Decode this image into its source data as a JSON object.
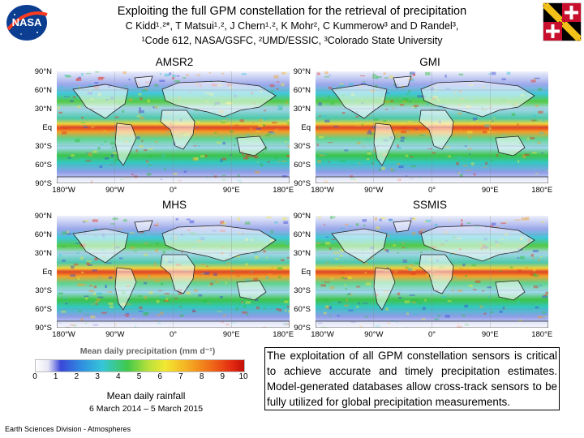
{
  "header": {
    "title": "Exploiting the full GPM constellation for the retrieval of precipitation",
    "authors": "C Kidd¹˒²*, T Matsui¹˒², J Chern¹˒², K Mohr², C Kummerow³ and D Randel³,",
    "affiliations": "¹Code 612, NASA/GSFC, ²UMD/ESSIC, ³Colorado State University"
  },
  "logos": {
    "nasa": "NASA"
  },
  "maps": [
    {
      "label": "AMSR2"
    },
    {
      "label": "GMI"
    },
    {
      "label": "MHS"
    },
    {
      "label": "SSMIS"
    }
  ],
  "axes": {
    "lat_labels": [
      "90°N",
      "60°N",
      "30°N",
      "Eq",
      "30°S",
      "60°S",
      "90°S"
    ],
    "lon_labels": [
      "180°W",
      "90°W",
      "0°",
      "90°E",
      "180°E"
    ]
  },
  "colorbar": {
    "title": "Mean daily precipitation (mm d⁻¹)",
    "ticks": [
      "0",
      "1",
      "2",
      "3",
      "4",
      "5",
      "6",
      "7",
      "8",
      "9",
      "10"
    ]
  },
  "caption": {
    "line1": "Mean daily rainfall",
    "line2": "6 March 2014 – 5 March 2015"
  },
  "footer": "Earth Sciences Division - Atmospheres",
  "body_text": "The exploitation of all GPM constellation sensors is critical to achieve accurate and timely precipitation estimates. Model-generated databases allow cross-track sensors to be fully utilized for global precipitation measurements.",
  "colors": {
    "ocean_low": "#d8dff7",
    "itcz": "#e8341c",
    "mid": "#2fbf3a",
    "land": "#ffffff"
  }
}
